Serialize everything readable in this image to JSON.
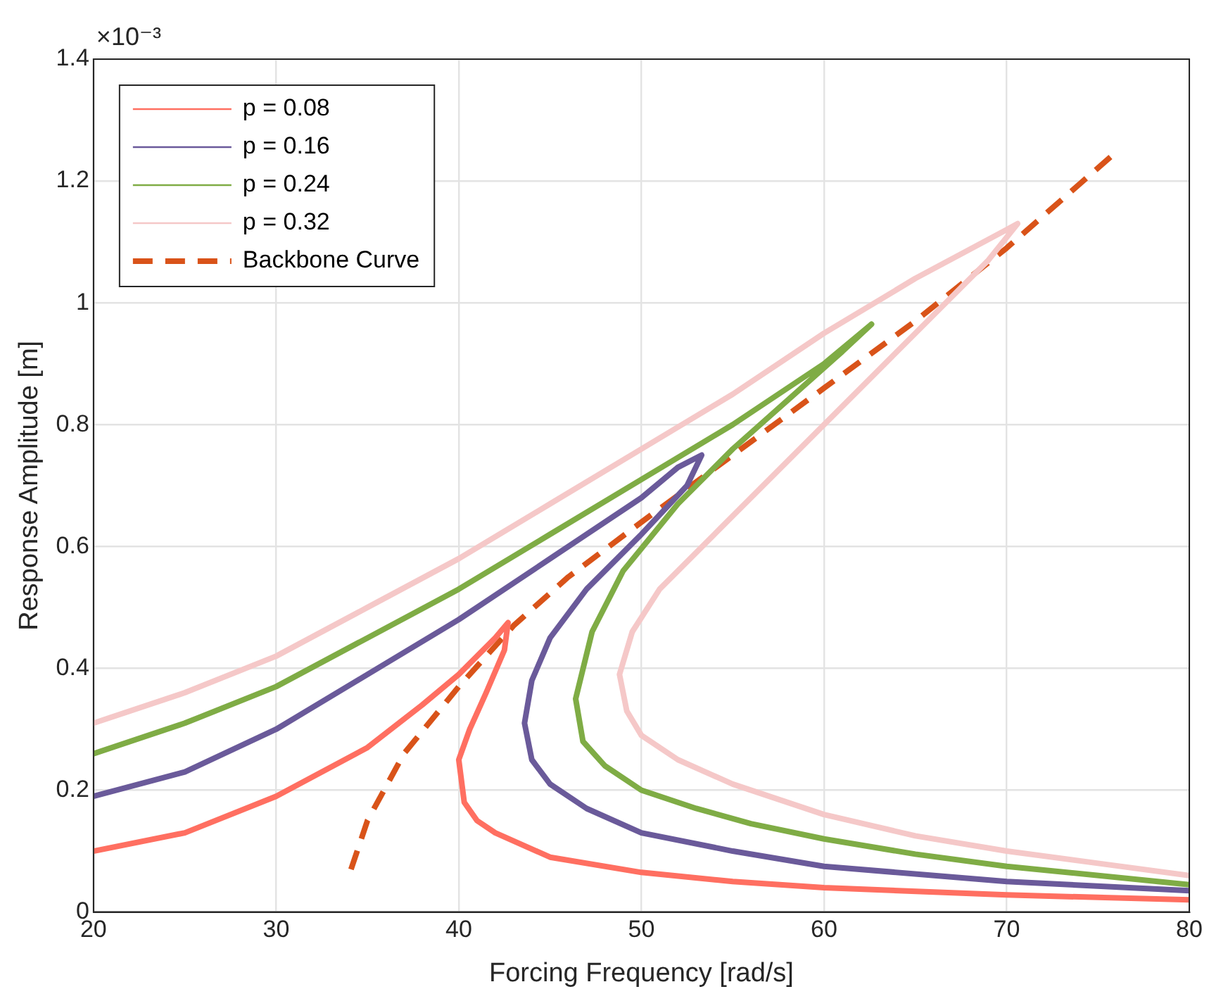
{
  "chart_data": {
    "type": "line",
    "xlabel": "Forcing Frequency [rad/s]",
    "ylabel": "Response Amplitude [m]",
    "annotations": [
      "×10⁻³"
    ],
    "xlim": [
      20,
      80
    ],
    "xticks": [
      20,
      30,
      40,
      50,
      60,
      70,
      80
    ],
    "ylim": [
      0,
      1.4
    ],
    "yticks": [
      0,
      0.2,
      0.4,
      0.6,
      0.8,
      1,
      1.2,
      1.4
    ],
    "grid": true,
    "legend": "top left",
    "marker": "none",
    "series": [
      {
        "name": "p = 0.08",
        "color": "#ff6f61",
        "x": [
          20,
          25,
          30,
          35,
          38,
          40,
          42,
          42.7,
          42.5,
          41.5,
          40.6,
          40.0,
          40.3,
          41,
          42,
          45,
          50,
          55,
          60,
          70,
          80
        ],
        "values": [
          0.1,
          0.13,
          0.19,
          0.27,
          0.34,
          0.39,
          0.45,
          0.475,
          0.43,
          0.36,
          0.3,
          0.25,
          0.18,
          0.15,
          0.13,
          0.09,
          0.065,
          0.05,
          0.04,
          0.028,
          0.02
        ]
      },
      {
        "name": "p = 0.16",
        "color": "#6a5a9a",
        "x": [
          20,
          25,
          30,
          35,
          40,
          45,
          50,
          52,
          53.3,
          52.5,
          50,
          47,
          45,
          44,
          43.6,
          44,
          45,
          47,
          50,
          55,
          60,
          70,
          80
        ],
        "values": [
          0.19,
          0.23,
          0.3,
          0.39,
          0.48,
          0.58,
          0.68,
          0.73,
          0.75,
          0.7,
          0.62,
          0.53,
          0.45,
          0.38,
          0.31,
          0.25,
          0.21,
          0.17,
          0.13,
          0.1,
          0.075,
          0.05,
          0.035
        ]
      },
      {
        "name": "p = 0.24",
        "color": "#7fac45",
        "x": [
          20,
          25,
          30,
          35,
          40,
          45,
          50,
          55,
          60,
          62.6,
          61,
          58,
          55,
          52,
          49,
          47.3,
          46.4,
          46.8,
          48,
          50,
          53,
          56,
          60,
          65,
          70,
          80
        ],
        "values": [
          0.26,
          0.31,
          0.37,
          0.45,
          0.53,
          0.62,
          0.71,
          0.8,
          0.9,
          0.965,
          0.92,
          0.84,
          0.76,
          0.67,
          0.56,
          0.46,
          0.35,
          0.28,
          0.24,
          0.2,
          0.17,
          0.145,
          0.12,
          0.095,
          0.075,
          0.045
        ]
      },
      {
        "name": "p = 0.32",
        "color": "#f5c8c8",
        "x": [
          20,
          25,
          30,
          35,
          40,
          45,
          50,
          55,
          60,
          65,
          70,
          70.6,
          69,
          66,
          62,
          58,
          54,
          51,
          49.5,
          48.8,
          49.2,
          50,
          52,
          55,
          60,
          65,
          70,
          75,
          80
        ],
        "values": [
          0.31,
          0.36,
          0.42,
          0.5,
          0.58,
          0.67,
          0.76,
          0.85,
          0.95,
          1.04,
          1.12,
          1.13,
          1.07,
          0.98,
          0.86,
          0.74,
          0.62,
          0.53,
          0.46,
          0.39,
          0.33,
          0.29,
          0.25,
          0.21,
          0.16,
          0.125,
          0.1,
          0.08,
          0.06
        ]
      },
      {
        "name": "Backbone Curve",
        "color": "#d95319",
        "line_style": "dashed",
        "x": [
          34.1,
          35,
          37,
          40,
          43,
          46,
          50,
          55,
          60,
          65,
          70,
          75.9
        ],
        "values": [
          0.07,
          0.15,
          0.26,
          0.37,
          0.47,
          0.55,
          0.64,
          0.75,
          0.86,
          0.97,
          1.09,
          1.245
        ]
      }
    ]
  }
}
